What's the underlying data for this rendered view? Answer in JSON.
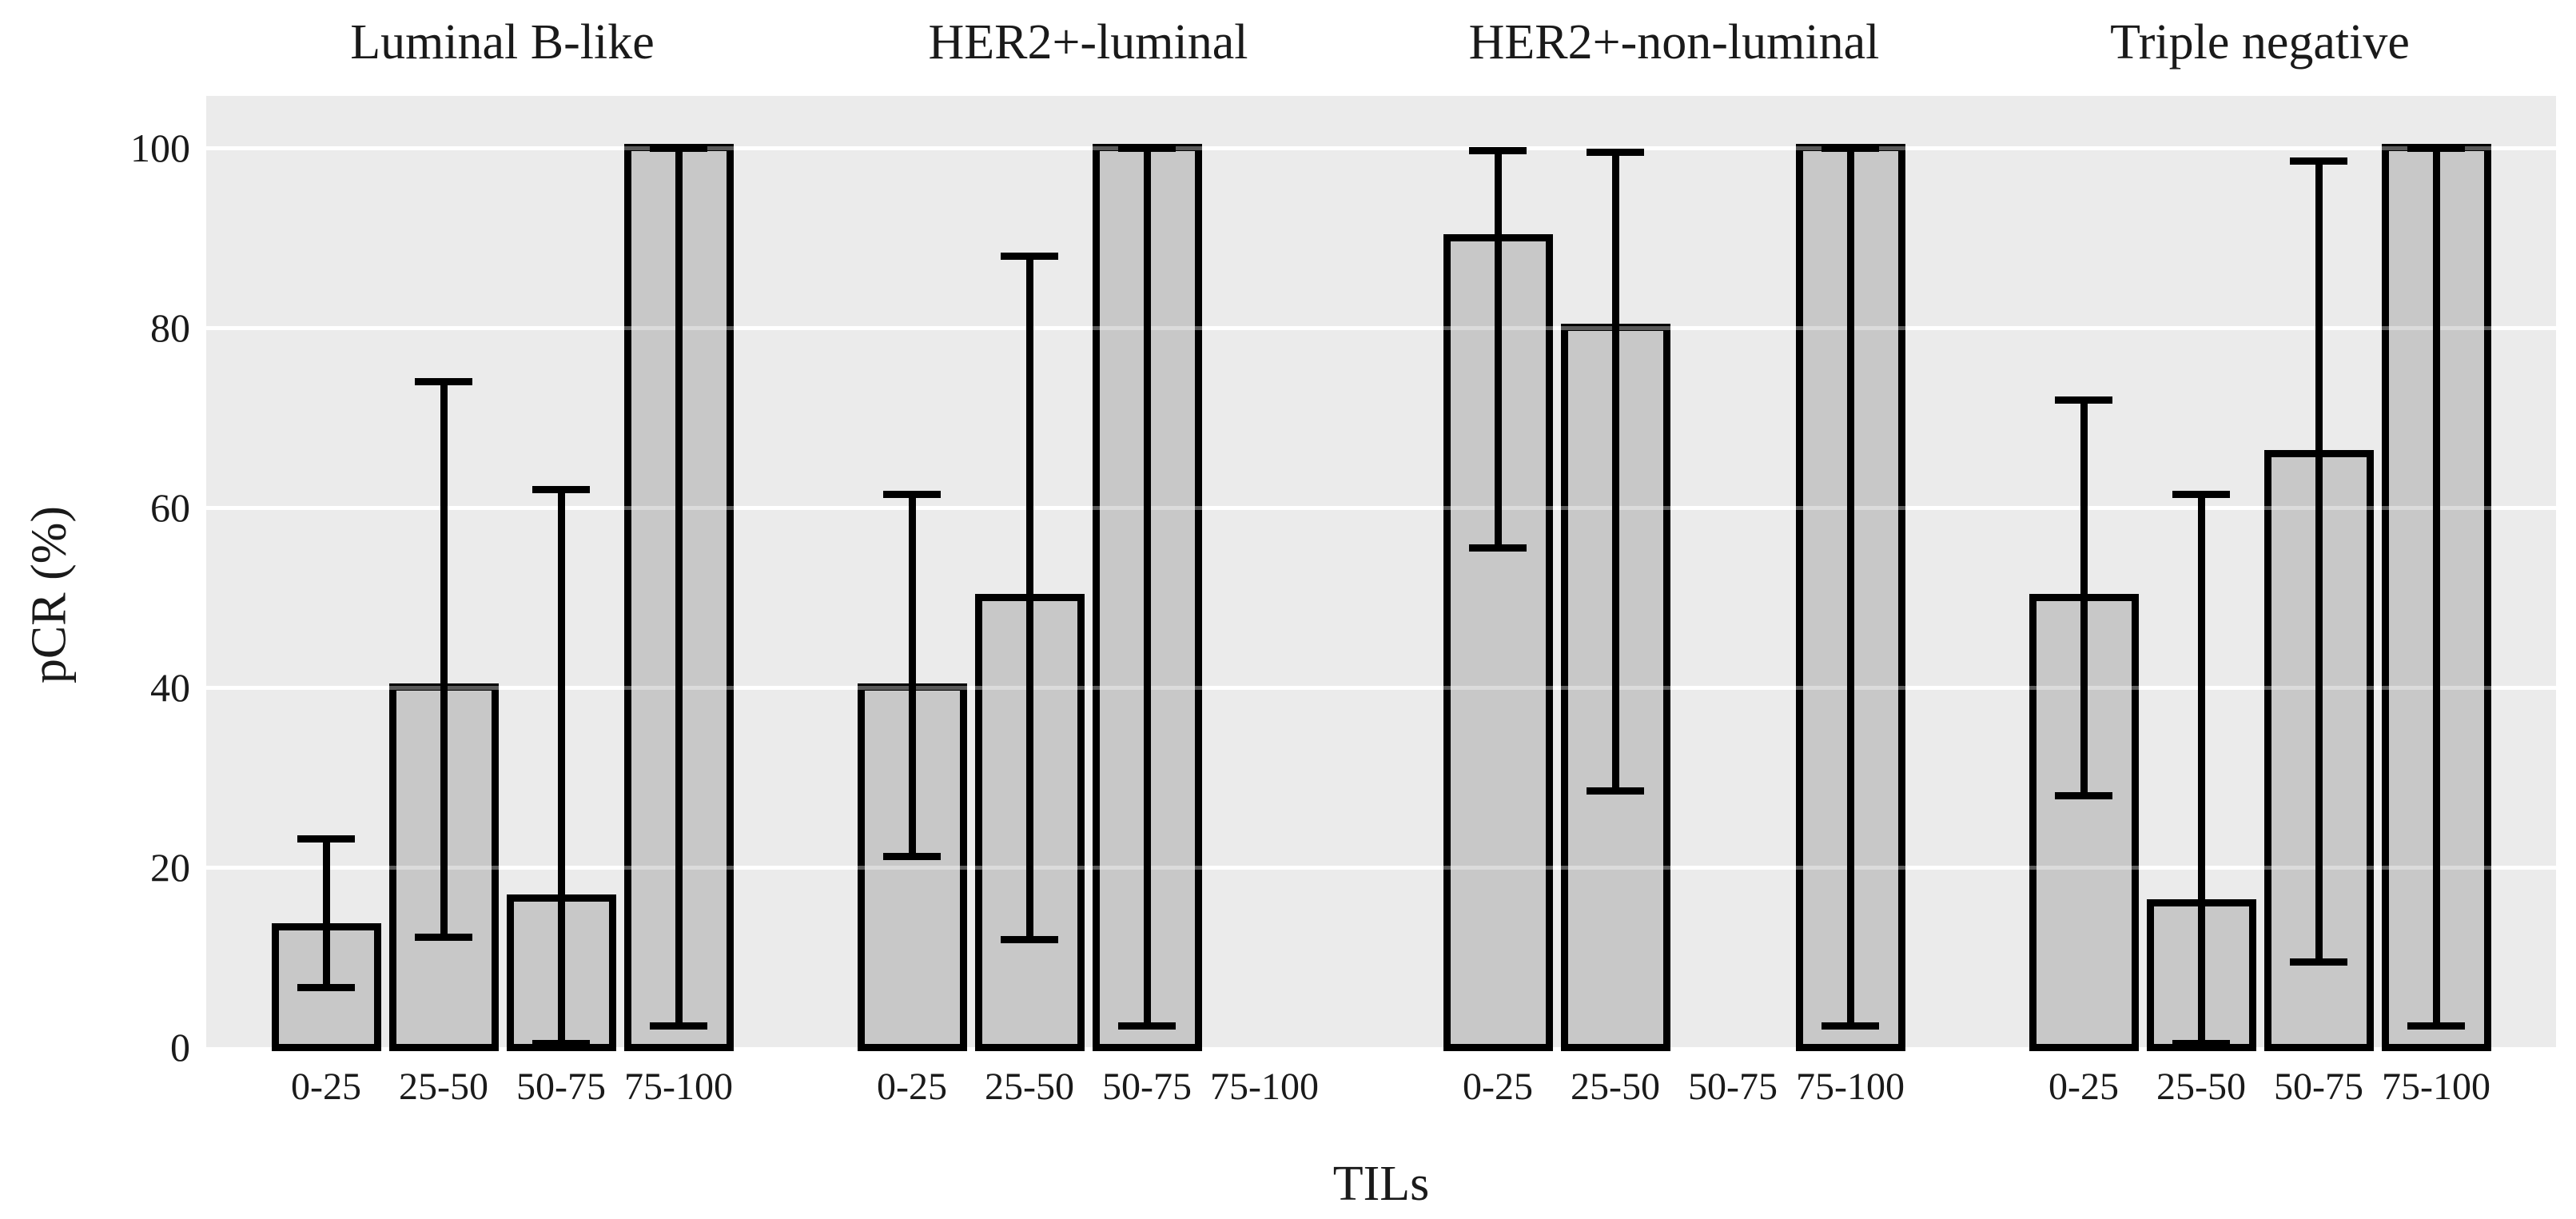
{
  "figure": {
    "xlabel": "TILs",
    "ylabel": "pCR (%)",
    "background_color": "#ffffff",
    "panel_color": "#ebebeb",
    "gridline_color": "#ffffff",
    "bar_fill_color": "#c8c8c8",
    "bar_border_color": "#000000",
    "error_bar_color": "#000000"
  },
  "chart_data": {
    "type": "bar",
    "title": "",
    "xlabel": "TILs",
    "ylabel": "pCR (%)",
    "categories": [
      "0-25",
      "25-50",
      "50-75",
      "75-100"
    ],
    "yticks": [
      0,
      20,
      40,
      60,
      80,
      100
    ],
    "ylim": [
      0,
      105.8
    ],
    "grid": "horizontal white gridlines on gray panel",
    "legend": "none",
    "error_bars": "95% confidence intervals",
    "groups": [
      {
        "label": "Luminal B-like",
        "series": [
          {
            "category": "0-25",
            "value": 13.3,
            "ci_low": 6.6,
            "ci_high": 23.2
          },
          {
            "category": "25-50",
            "value": 40,
            "ci_low": 12.2,
            "ci_high": 74
          },
          {
            "category": "50-75",
            "value": 16.5,
            "ci_low": 0.4,
            "ci_high": 62
          },
          {
            "category": "75-100",
            "value": 100,
            "ci_low": 2.4,
            "ci_high": 100
          }
        ]
      },
      {
        "label": "HER2+-luminal",
        "series": [
          {
            "category": "0-25",
            "value": 40,
            "ci_low": 21.2,
            "ci_high": 61.5
          },
          {
            "category": "25-50",
            "value": 50,
            "ci_low": 12,
            "ci_high": 88
          },
          {
            "category": "50-75",
            "value": 100,
            "ci_low": 2.4,
            "ci_high": 100
          },
          {
            "category": "75-100",
            "value": null,
            "ci_low": null,
            "ci_high": null
          }
        ]
      },
      {
        "label": "HER2+-non-luminal",
        "series": [
          {
            "category": "0-25",
            "value": 90,
            "ci_low": 55.5,
            "ci_high": 99.7
          },
          {
            "category": "25-50",
            "value": 80,
            "ci_low": 28.5,
            "ci_high": 99.5
          },
          {
            "category": "50-75",
            "value": null,
            "ci_low": null,
            "ci_high": null
          },
          {
            "category": "75-100",
            "value": 100,
            "ci_low": 2.4,
            "ci_high": 100
          }
        ]
      },
      {
        "label": "Triple negative",
        "series": [
          {
            "category": "0-25",
            "value": 50,
            "ci_low": 28,
            "ci_high": 72
          },
          {
            "category": "25-50",
            "value": 16,
            "ci_low": 0.4,
            "ci_high": 61.5
          },
          {
            "category": "50-75",
            "value": 66,
            "ci_low": 9.5,
            "ci_high": 98.5
          },
          {
            "category": "75-100",
            "value": 100,
            "ci_low": 2.4,
            "ci_high": 100
          }
        ]
      }
    ]
  }
}
